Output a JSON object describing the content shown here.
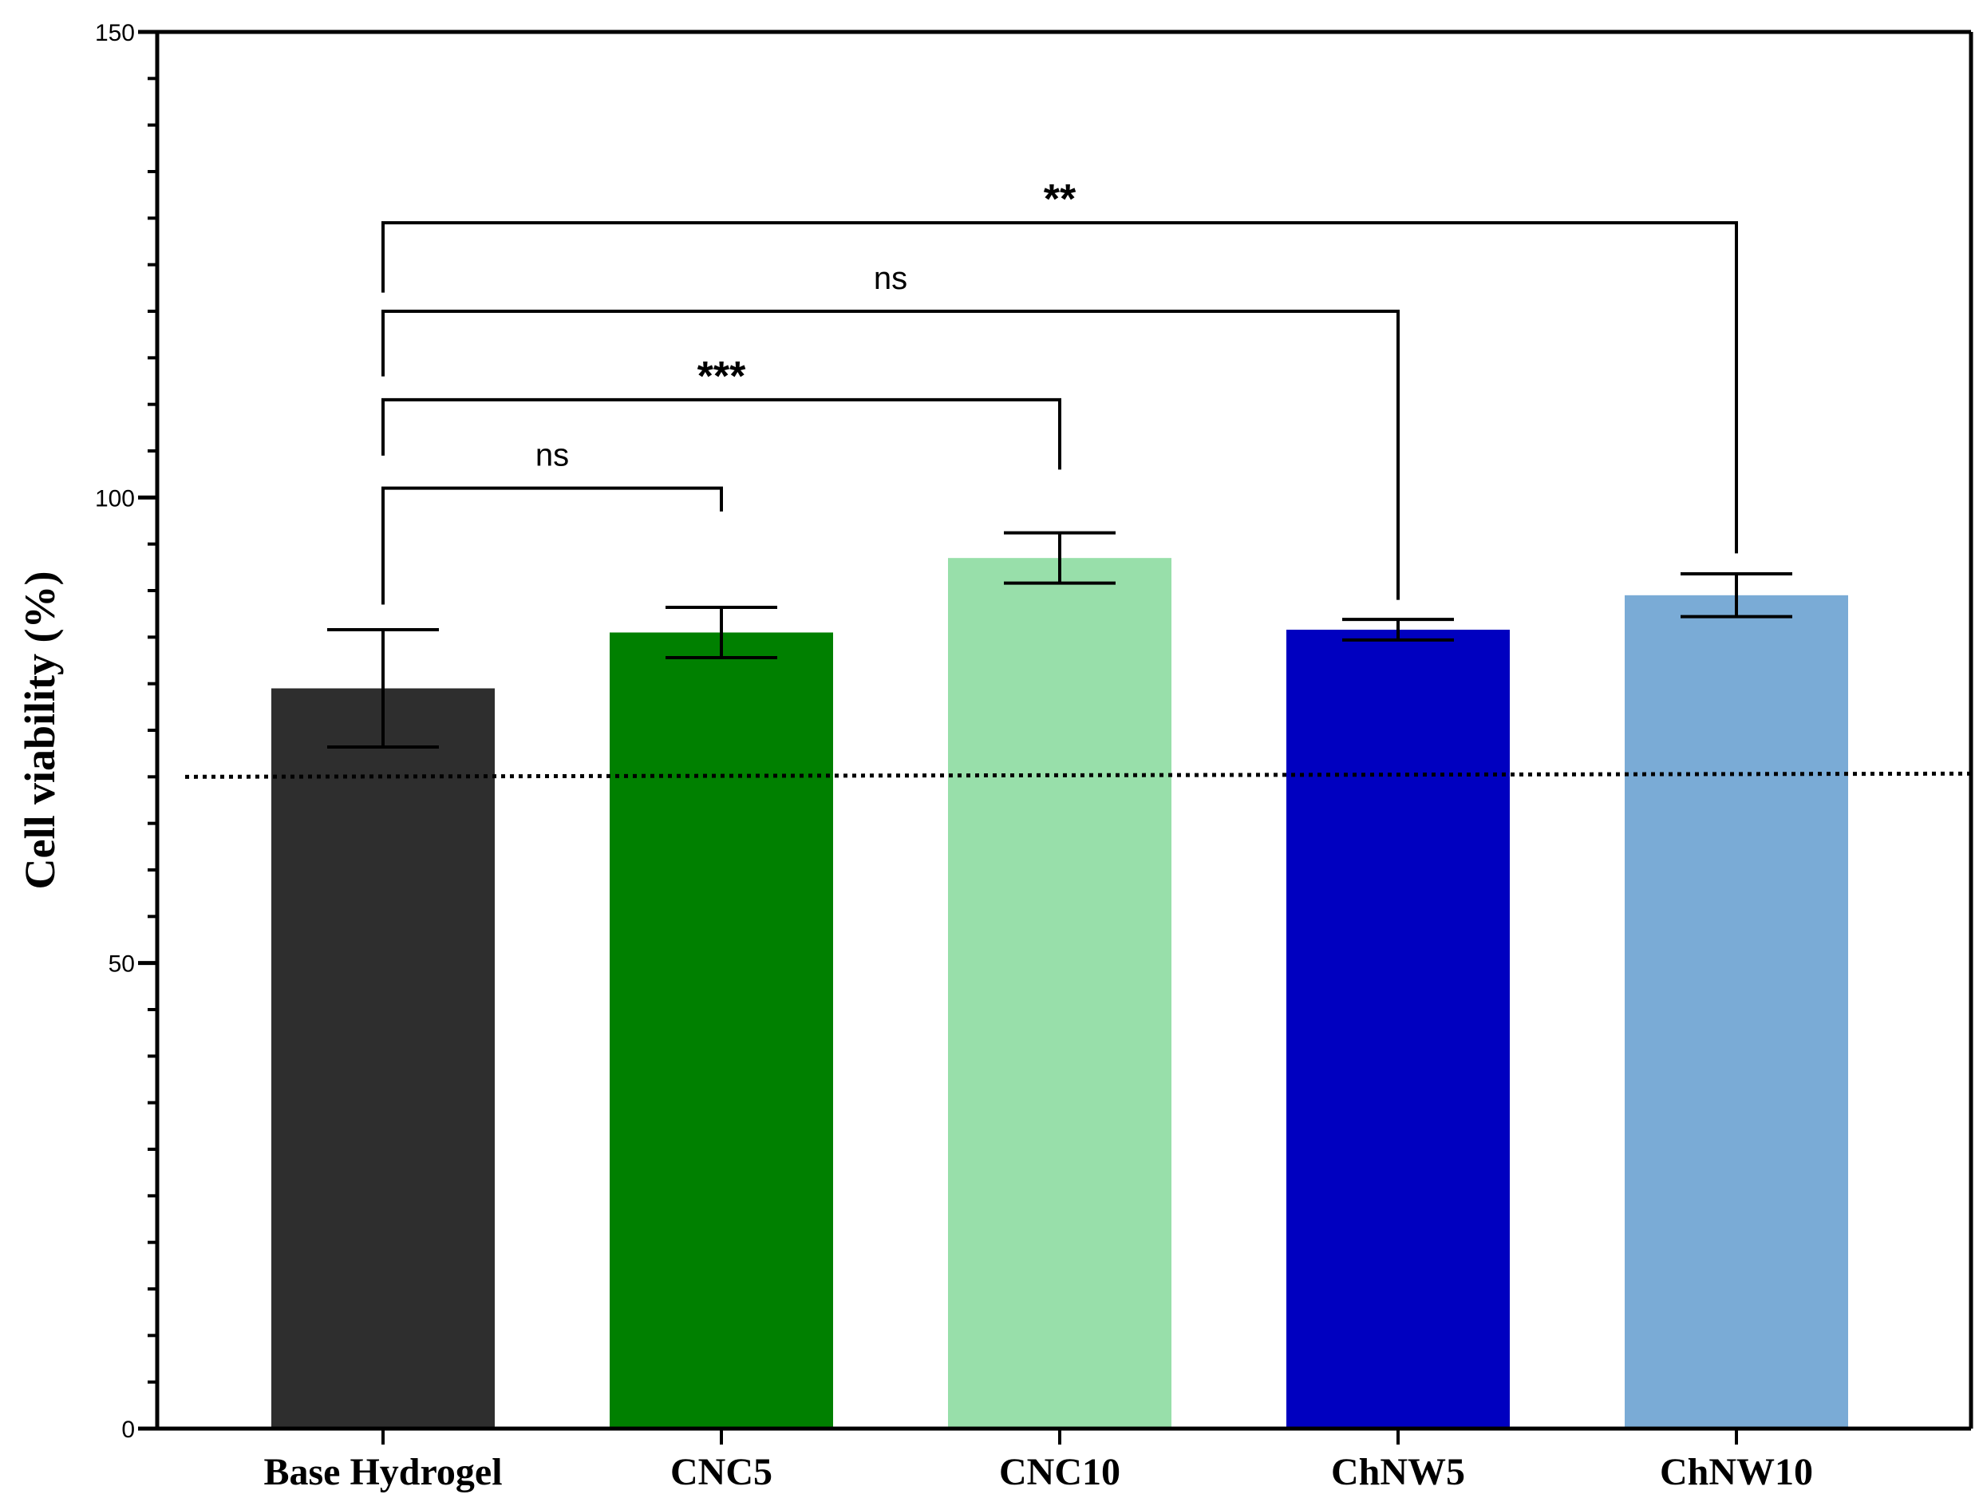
{
  "chart_data": {
    "type": "bar",
    "title": "",
    "xlabel": "",
    "ylabel": "Cell viability (%)",
    "ylim": [
      0,
      150
    ],
    "yticks_major": [
      0,
      50,
      100,
      150
    ],
    "yticks_minor_step": 5,
    "categories": [
      "Base Hydrogel",
      "CNC5",
      "CNC10",
      "ChNW5",
      "ChNW10"
    ],
    "values": [
      79.5,
      85.5,
      93.5,
      85.8,
      89.5
    ],
    "errors": [
      6.3,
      2.7,
      2.7,
      1.1,
      2.3
    ],
    "colors": [
      "#2e2e2e",
      "#008000",
      "#98dfaa",
      "#0000c0",
      "#7aabd6"
    ],
    "reference_line": {
      "value": 70,
      "style": "dotted"
    },
    "significance": [
      {
        "from": 0,
        "to": 1,
        "label": "ns",
        "y": 101,
        "left_drop": 88.5,
        "right_drop": 98.5
      },
      {
        "from": 0,
        "to": 2,
        "label": "***",
        "y": 110.5,
        "left_drop": 104.5,
        "right_drop": 103
      },
      {
        "from": 0,
        "to": 3,
        "label": "ns",
        "y": 120,
        "left_drop": 113,
        "right_drop": 89
      },
      {
        "from": 0,
        "to": 4,
        "label": "**",
        "y": 129.5,
        "left_drop": 122,
        "right_drop": 94
      }
    ]
  }
}
